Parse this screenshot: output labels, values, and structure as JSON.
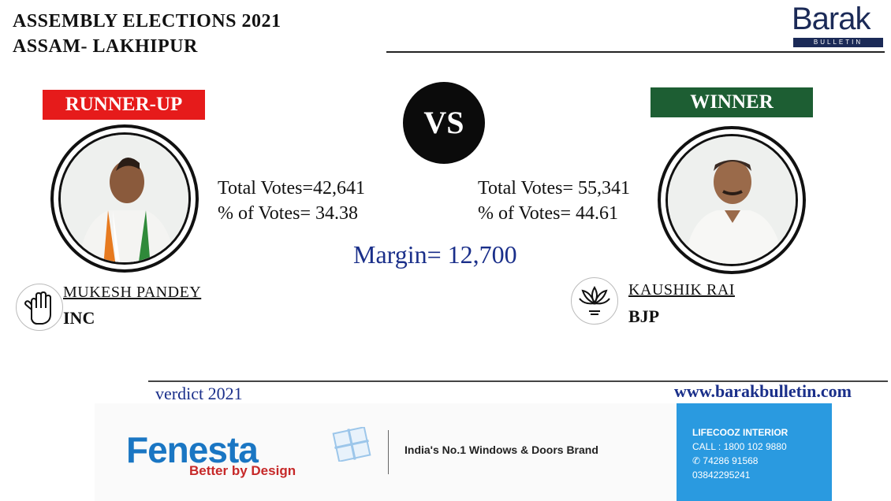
{
  "header": {
    "line1": "ASSEMBLY ELECTIONS 2021",
    "line2": "ASSAM- LAKHIPUR"
  },
  "logo": {
    "word": "Barak",
    "subtitle": "BULLETIN",
    "color": "#1b2a57"
  },
  "runner_up": {
    "badge": "RUNNER-UP",
    "badge_color": "#e61b1b",
    "total_votes": "Total Votes=42,641",
    "pct_votes": "% of Votes= 34.38",
    "name": "MUKESH PANDEY",
    "party": "INC",
    "party_symbol": "hand-icon"
  },
  "winner": {
    "badge": "WINNER",
    "badge_color": "#1d5e33",
    "total_votes": "Total Votes= 55,341",
    "pct_votes": "% of Votes= 44.61",
    "name": "KAUSHIK RAI",
    "party": "BJP",
    "party_symbol": "lotus-icon"
  },
  "vs_label": "VS",
  "margin": "Margin= 12,700",
  "footer": {
    "verdict": "verdict 2021",
    "website": "www.barakbulletin.com"
  },
  "ad": {
    "logo": "Fenesta",
    "tagline": "Better by Design",
    "brand_line": "India's No.1 Windows & Doors Brand",
    "panel": {
      "line1": "LIFECOOZ INTERIOR",
      "line2": "CALL : 1800 102 9880",
      "line3": "✆ 74286 91568",
      "line4": "03842295241"
    }
  },
  "colors": {
    "accent_blue": "#1a2f8a",
    "ad_blue": "#2a9ae0"
  }
}
